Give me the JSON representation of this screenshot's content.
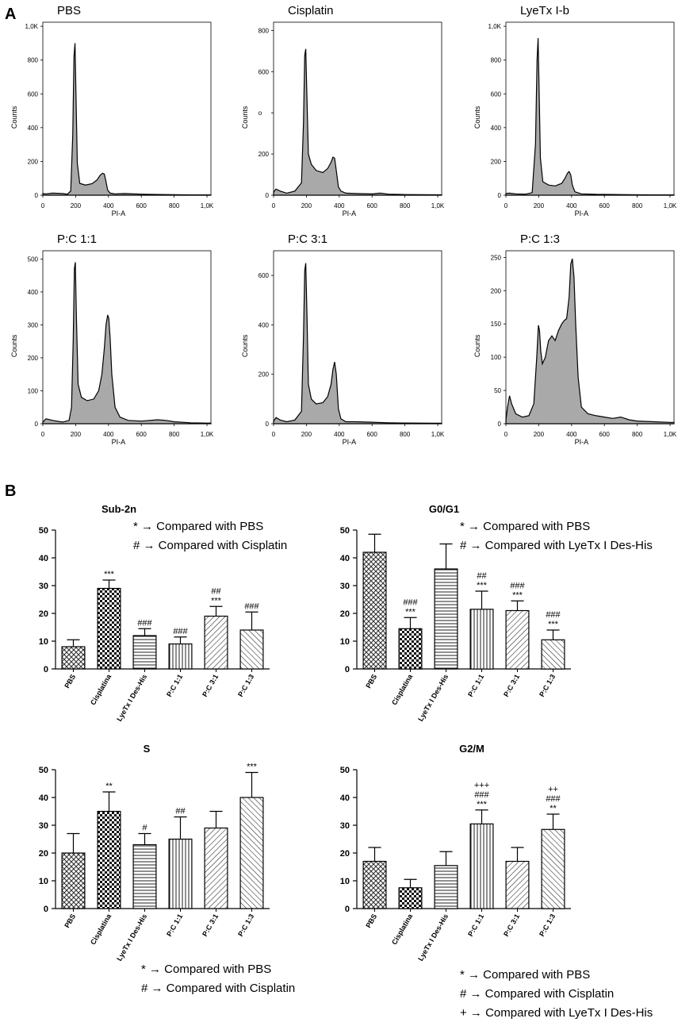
{
  "figure": {
    "panel_a_label": "A",
    "panel_b_label": "B"
  },
  "chart_data": [
    {
      "type": "area",
      "title": "PBS",
      "xlabel": "PI-A",
      "ylabel": "Counts",
      "xlim": [
        0,
        1024
      ],
      "ylim": [
        0,
        1024
      ],
      "yticks": [
        0,
        200,
        400,
        600,
        800,
        1000
      ],
      "ytick_labels": [
        "0",
        "200",
        "400",
        "600",
        "800",
        "1,0K"
      ],
      "xticks": [
        0,
        200,
        400,
        600,
        800,
        1000
      ],
      "xtick_labels": [
        "0",
        "200",
        "400",
        "600",
        "800",
        "1,0K"
      ],
      "x": [
        0,
        20,
        60,
        120,
        150,
        170,
        182,
        190,
        196,
        202,
        210,
        225,
        260,
        300,
        330,
        350,
        365,
        375,
        385,
        395,
        410,
        440,
        500,
        600,
        700,
        800,
        900,
        1000,
        1024
      ],
      "values": [
        10,
        8,
        12,
        10,
        6,
        25,
        350,
        820,
        900,
        600,
        190,
        70,
        60,
        68,
        90,
        120,
        130,
        125,
        80,
        30,
        12,
        8,
        10,
        6,
        4,
        3,
        2,
        2,
        2
      ]
    },
    {
      "type": "area",
      "title": "Cisplatin",
      "xlabel": "PI-A",
      "ylabel": "Counts",
      "ylabel_stray": "o",
      "xlim": [
        0,
        1024
      ],
      "ylim": [
        0,
        840
      ],
      "yticks": [
        0,
        200,
        400,
        600,
        800
      ],
      "ytick_labels": [
        "0",
        "200",
        "",
        "600",
        "800"
      ],
      "xticks": [
        0,
        200,
        400,
        600,
        800,
        1000
      ],
      "xtick_labels": [
        "0",
        "200",
        "400",
        "600",
        "800",
        "1,0K"
      ],
      "x": [
        0,
        15,
        40,
        80,
        130,
        170,
        182,
        190,
        196,
        202,
        212,
        230,
        260,
        300,
        330,
        350,
        362,
        372,
        382,
        395,
        410,
        440,
        500,
        600,
        650,
        700,
        800,
        1000,
        1024
      ],
      "values": [
        15,
        30,
        20,
        10,
        20,
        60,
        350,
        680,
        710,
        520,
        200,
        150,
        120,
        110,
        130,
        160,
        185,
        180,
        120,
        40,
        20,
        10,
        8,
        6,
        10,
        5,
        3,
        2,
        2
      ]
    },
    {
      "type": "area",
      "title": "LyeTx I-b",
      "xlabel": "PI-A",
      "ylabel": "Counts",
      "xlim": [
        0,
        1024
      ],
      "ylim": [
        0,
        1024
      ],
      "yticks": [
        0,
        200,
        400,
        600,
        800,
        1000
      ],
      "ytick_labels": [
        "0",
        "200",
        "400",
        "600",
        "800",
        "1,0K"
      ],
      "xticks": [
        0,
        200,
        400,
        600,
        800,
        1000
      ],
      "xtick_labels": [
        "0",
        "200",
        "400",
        "600",
        "800",
        "1,0K"
      ],
      "x": [
        0,
        20,
        60,
        120,
        160,
        180,
        190,
        196,
        202,
        210,
        225,
        260,
        300,
        340,
        360,
        375,
        385,
        395,
        405,
        420,
        460,
        550,
        650,
        750,
        900,
        1024
      ],
      "values": [
        10,
        12,
        8,
        6,
        15,
        300,
        800,
        930,
        650,
        220,
        80,
        60,
        55,
        70,
        100,
        130,
        140,
        120,
        60,
        20,
        8,
        5,
        4,
        3,
        2,
        2
      ]
    },
    {
      "type": "area",
      "title": "P:C 1:1",
      "xlabel": "PI-A",
      "ylabel": "Counts",
      "xlim": [
        0,
        1024
      ],
      "ylim": [
        0,
        525
      ],
      "yticks": [
        0,
        100,
        200,
        300,
        400,
        500
      ],
      "ytick_labels": [
        "0",
        "100",
        "200",
        "300",
        "400",
        "500"
      ],
      "xticks": [
        0,
        200,
        400,
        600,
        800,
        1000
      ],
      "xtick_labels": [
        "0",
        "200",
        "400",
        "600",
        "800",
        "1,0K"
      ],
      "x": [
        0,
        20,
        60,
        120,
        160,
        175,
        185,
        192,
        198,
        205,
        215,
        235,
        270,
        310,
        340,
        360,
        375,
        385,
        395,
        402,
        410,
        420,
        440,
        470,
        520,
        600,
        700,
        750,
        800,
        900,
        1000,
        1024
      ],
      "values": [
        5,
        15,
        10,
        5,
        10,
        50,
        250,
        470,
        490,
        320,
        120,
        80,
        70,
        75,
        100,
        150,
        230,
        300,
        330,
        320,
        260,
        150,
        50,
        20,
        10,
        8,
        12,
        10,
        6,
        3,
        2,
        2
      ]
    },
    {
      "type": "area",
      "title": "P:C 3:1",
      "xlabel": "PI-A",
      "ylabel": "Counts",
      "xlim": [
        0,
        1024
      ],
      "ylim": [
        0,
        700
      ],
      "yticks": [
        0,
        200,
        400,
        600
      ],
      "ytick_labels": [
        "0",
        "200",
        "400",
        "600"
      ],
      "xticks": [
        0,
        200,
        400,
        600,
        800,
        1000
      ],
      "xtick_labels": [
        "0",
        "200",
        "400",
        "600",
        "800",
        "1,0K"
      ],
      "x": [
        0,
        15,
        40,
        80,
        130,
        170,
        182,
        190,
        196,
        203,
        212,
        230,
        260,
        300,
        330,
        350,
        362,
        372,
        382,
        395,
        410,
        440,
        500,
        600,
        700,
        800,
        1000,
        1024
      ],
      "values": [
        10,
        25,
        15,
        8,
        15,
        50,
        350,
        620,
        650,
        460,
        160,
        100,
        80,
        85,
        110,
        160,
        220,
        250,
        200,
        60,
        20,
        8,
        8,
        6,
        4,
        3,
        2,
        2
      ]
    },
    {
      "type": "area",
      "title": "P:C 1:3",
      "xlabel": "PI-A",
      "ylabel": "Counts",
      "xlim": [
        0,
        1024
      ],
      "ylim": [
        0,
        260
      ],
      "yticks": [
        0,
        50,
        100,
        150,
        200,
        250
      ],
      "ytick_labels": [
        "0",
        "50",
        "100",
        "150",
        "200",
        "250"
      ],
      "xticks": [
        0,
        200,
        400,
        600,
        800,
        1000
      ],
      "xtick_labels": [
        "0",
        "200",
        "400",
        "600",
        "800",
        "1,0K"
      ],
      "x": [
        0,
        10,
        22,
        35,
        60,
        100,
        140,
        170,
        188,
        198,
        205,
        212,
        222,
        240,
        260,
        280,
        300,
        320,
        340,
        355,
        370,
        385,
        395,
        405,
        415,
        425,
        440,
        460,
        500,
        550,
        600,
        650,
        700,
        750,
        800,
        900,
        1000,
        1024
      ],
      "values": [
        5,
        25,
        42,
        30,
        15,
        10,
        12,
        30,
        100,
        148,
        140,
        110,
        90,
        100,
        125,
        132,
        125,
        140,
        150,
        155,
        158,
        190,
        240,
        248,
        220,
        150,
        70,
        25,
        15,
        12,
        10,
        8,
        10,
        6,
        4,
        3,
        2,
        2
      ]
    },
    {
      "type": "bar",
      "title": "Sub-2n",
      "categories": [
        "PBS",
        "Cisplatina",
        "LyeTx I Des-His",
        "P:C 1:1",
        "P:C 3:1",
        "P:C 1:3"
      ],
      "values": [
        8,
        29,
        12,
        9,
        19,
        14
      ],
      "errors": [
        2.5,
        3,
        2.5,
        2.5,
        3.5,
        6.5
      ],
      "significance": [
        "",
        "***",
        "###",
        "###",
        "##\n***",
        "###"
      ],
      "ylim": [
        0,
        50
      ],
      "yticks": [
        0,
        10,
        20,
        30,
        40,
        50
      ],
      "legend": [
        "* → Compared with PBS",
        "# → Compared with Cisplatin"
      ]
    },
    {
      "type": "bar",
      "title": "G0/G1",
      "categories": [
        "PBS",
        "Cisplatina",
        "LyeTx I Des-His",
        "P:C 1:1",
        "P:C 3:1",
        "P:C 1:3"
      ],
      "values": [
        42,
        14.5,
        36,
        21.5,
        21,
        10.5
      ],
      "errors": [
        6.5,
        4,
        9,
        6.5,
        3.5,
        3.5
      ],
      "significance": [
        "",
        "###\n***",
        "",
        "##\n***",
        "###\n***",
        "###\n***"
      ],
      "ylim": [
        0,
        50
      ],
      "yticks": [
        0,
        10,
        20,
        30,
        40,
        50
      ],
      "legend": [
        "* → Compared with PBS",
        "# → Compared with LyeTx I Des-His"
      ]
    },
    {
      "type": "bar",
      "title": "S",
      "categories": [
        "PBS",
        "Cisplatina",
        "LyeTx I Des-His",
        "P:C 1:1",
        "P:C 3:1",
        "P:C 1:3"
      ],
      "values": [
        20,
        35,
        23,
        25,
        29,
        40
      ],
      "errors": [
        7,
        7,
        4,
        8,
        6,
        9
      ],
      "significance": [
        "",
        "**",
        "#",
        "##",
        "",
        "***"
      ],
      "ylim": [
        0,
        50
      ],
      "yticks": [
        0,
        10,
        20,
        30,
        40,
        50
      ],
      "legend": [
        "* → Compared with PBS",
        "# → Compared with Cisplatin"
      ]
    },
    {
      "type": "bar",
      "title": "G2/M",
      "categories": [
        "PBS",
        "Cisplatina",
        "LyeTx I Des-His",
        "P:C 1:1",
        "P:C 3:1",
        "P:C 1:3"
      ],
      "values": [
        17,
        7.5,
        15.5,
        30.5,
        17,
        28.5
      ],
      "errors": [
        5,
        3,
        5,
        5,
        5,
        5.5
      ],
      "significance": [
        "",
        "",
        "",
        "+++\n###\n***",
        "",
        "++\n###\n**"
      ],
      "ylim": [
        0,
        50
      ],
      "yticks": [
        0,
        10,
        20,
        30,
        40,
        50
      ],
      "legend": [
        "* → Compared with PBS",
        "# → Compared with Cisplatin",
        "+ → Compared with LyeTx I Des-His"
      ]
    }
  ]
}
